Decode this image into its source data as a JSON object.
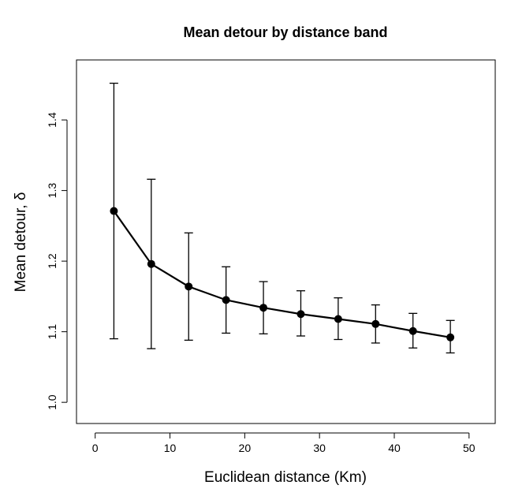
{
  "chart_data": {
    "type": "line",
    "title": "Mean detour by distance band",
    "xlabel": "Euclidean distance (Km)",
    "ylabel": "Mean detour, δ",
    "xlim": [
      -2.5,
      53.5
    ],
    "ylim": [
      0.97,
      1.485
    ],
    "xticks": [
      0,
      10,
      20,
      30,
      40,
      50
    ],
    "yticks": [
      1.0,
      1.1,
      1.2,
      1.3,
      1.4
    ],
    "grid": false,
    "legend": "none",
    "series": [
      {
        "x": [
          2.5,
          7.5,
          12.5,
          17.5,
          22.5,
          27.5,
          32.5,
          37.5,
          42.5,
          47.5
        ],
        "y": [
          1.271,
          1.196,
          1.164,
          1.145,
          1.134,
          1.125,
          1.118,
          1.111,
          1.101,
          1.092
        ],
        "upper": [
          1.452,
          1.316,
          1.24,
          1.192,
          1.171,
          1.158,
          1.148,
          1.138,
          1.126,
          1.116
        ],
        "lower": [
          1.09,
          1.076,
          1.088,
          1.098,
          1.097,
          1.094,
          1.089,
          1.084,
          1.077,
          1.07
        ]
      }
    ]
  }
}
